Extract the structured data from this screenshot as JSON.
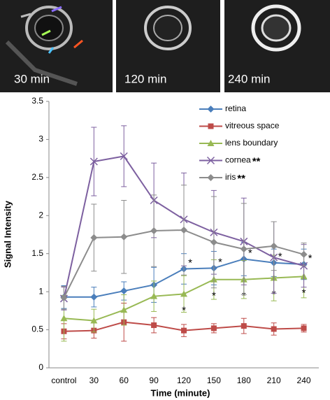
{
  "images": [
    {
      "label": "30 min"
    },
    {
      "label": "120 min"
    },
    {
      "label": "240 min"
    }
  ],
  "chart_data": {
    "type": "line",
    "y_label": "Signal Intensity",
    "x_label": "Time (minute)",
    "categories": [
      "control",
      "30",
      "60",
      "90",
      "120",
      "150",
      "180",
      "210",
      "240"
    ],
    "ylim": [
      0,
      3.5
    ],
    "yticks": [
      0,
      0.5,
      1,
      1.5,
      2,
      2.5,
      3,
      3.5
    ],
    "grid": false,
    "series": [
      {
        "name": "retina",
        "color": "#4a7ebb",
        "marker": "diamond",
        "values": [
          0.93,
          0.93,
          1.01,
          1.09,
          1.3,
          1.31,
          1.43,
          1.38,
          1.36
        ],
        "errors": [
          0.15,
          0.13,
          0.12,
          0.23,
          0.2,
          0.22,
          0.22,
          0.18,
          0.2
        ],
        "annotations": [
          null,
          null,
          null,
          null,
          "*",
          "*",
          "*",
          "*",
          "*"
        ]
      },
      {
        "name": "vitreous space",
        "color": "#be4b48",
        "marker": "square",
        "values": [
          0.48,
          0.49,
          0.6,
          0.56,
          0.49,
          0.52,
          0.55,
          0.51,
          0.52
        ],
        "errors": [
          0.1,
          0.1,
          0.25,
          0.1,
          0.08,
          0.06,
          0.1,
          0.08,
          0.05
        ]
      },
      {
        "name": "lens boundary",
        "color": "#98b954",
        "marker": "triangle",
        "values": [
          0.65,
          0.62,
          0.76,
          0.94,
          0.97,
          1.16,
          1.16,
          1.18,
          1.2
        ],
        "errors": [
          0.3,
          0.15,
          0.2,
          0.2,
          0.24,
          0.26,
          0.25,
          0.3,
          0.28
        ],
        "annotations": [
          null,
          null,
          null,
          null,
          "*",
          "*",
          "*",
          "*",
          "*"
        ]
      },
      {
        "name": "cornea",
        "color": "#7d60a0",
        "marker": "x",
        "legend_note": "**",
        "values": [
          0.91,
          2.71,
          2.78,
          2.2,
          1.95,
          1.78,
          1.66,
          1.45,
          1.34
        ],
        "errors": [
          0.15,
          0.45,
          0.4,
          0.49,
          0.61,
          0.55,
          0.57,
          0.47,
          0.28
        ]
      },
      {
        "name": "iris",
        "color": "#8c8c8c",
        "marker": "diamond",
        "legend_note": "**",
        "values": [
          0.92,
          1.71,
          1.72,
          1.8,
          1.81,
          1.65,
          1.56,
          1.6,
          1.49
        ],
        "errors": [
          0.15,
          0.44,
          0.48,
          0.47,
          0.59,
          0.6,
          0.6,
          0.32,
          0.15
        ]
      }
    ]
  }
}
